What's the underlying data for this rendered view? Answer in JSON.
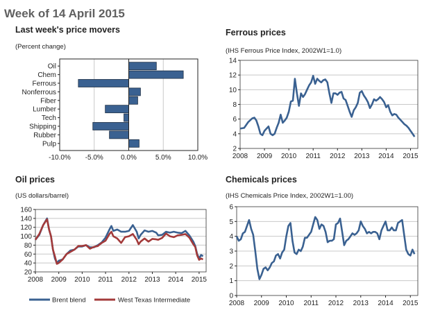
{
  "page_title": "Week of 14 April 2015",
  "colors": {
    "bar": "#3a6191",
    "brent": "#3a6191",
    "wti": "#a33a3a",
    "grid": "#c8c8c8"
  },
  "chart_data": [
    {
      "type": "bar",
      "orientation": "horizontal",
      "title": "Last week's price movers",
      "subtitle": "(Percent change)",
      "categories": [
        "Oil",
        "Chem",
        "Ferrous",
        "Nonferrous",
        "Fiber",
        "Lumber",
        "Tech",
        "Shipping",
        "Rubber",
        "Pulp"
      ],
      "values": [
        4.0,
        7.9,
        -7.3,
        1.7,
        1.3,
        -3.4,
        -0.7,
        -5.2,
        -2.8,
        1.5
      ],
      "xlim": [
        -10,
        10
      ],
      "xticks": [
        "-10.0%",
        "-5.0%",
        "0.0%",
        "5.0%",
        "10.0%"
      ],
      "grid": true
    },
    {
      "type": "line",
      "title": "Ferrous prices",
      "subtitle": "(IHS Ferrous Price Index, 2002W1=1.0)",
      "ylim": [
        2,
        14
      ],
      "yticks": [
        "2",
        "4",
        "6",
        "8",
        "10",
        "12",
        "14"
      ],
      "xticks": [
        "2008",
        "2009",
        "2010",
        "2011",
        "2012",
        "2013",
        "2014",
        "2015"
      ],
      "grid": true,
      "x": [
        "2008-01",
        "2008-03",
        "2008-05",
        "2008-07",
        "2008-08",
        "2008-09",
        "2008-10",
        "2008-11",
        "2008-12",
        "2009-01",
        "2009-02",
        "2009-03",
        "2009-04",
        "2009-05",
        "2009-06",
        "2009-07",
        "2009-08",
        "2009-09",
        "2009-10",
        "2009-11",
        "2009-12",
        "2010-01",
        "2010-02",
        "2010-03",
        "2010-04",
        "2010-05",
        "2010-06",
        "2010-07",
        "2010-08",
        "2010-09",
        "2010-10",
        "2010-11",
        "2010-12",
        "2011-01",
        "2011-02",
        "2011-03",
        "2011-04",
        "2011-05",
        "2011-06",
        "2011-07",
        "2011-08",
        "2011-09",
        "2011-10",
        "2011-11",
        "2011-12",
        "2012-01",
        "2012-02",
        "2012-03",
        "2012-04",
        "2012-05",
        "2012-06",
        "2012-07",
        "2012-08",
        "2012-09",
        "2012-10",
        "2012-11",
        "2012-12",
        "2013-01",
        "2013-02",
        "2013-03",
        "2013-04",
        "2013-05",
        "2013-06",
        "2013-07",
        "2013-08",
        "2013-09",
        "2013-10",
        "2013-11",
        "2013-12",
        "2014-01",
        "2014-02",
        "2014-03",
        "2014-04",
        "2014-05",
        "2014-06",
        "2014-07",
        "2014-08",
        "2014-09",
        "2014-10",
        "2014-11",
        "2014-12",
        "2015-01",
        "2015-02",
        "2015-03"
      ],
      "series": [
        {
          "values": [
            4.7,
            4.8,
            5.6,
            6.1,
            6.2,
            5.8,
            5.0,
            4.0,
            3.8,
            4.4,
            4.7,
            5.0,
            4.0,
            3.8,
            4.0,
            4.8,
            5.5,
            6.6,
            5.5,
            5.8,
            6.2,
            7.0,
            8.4,
            8.5,
            11.5,
            9.5,
            7.8,
            9.5,
            9.0,
            9.4,
            10.0,
            10.6,
            11.0,
            11.9,
            10.8,
            11.5,
            11.2,
            11.0,
            11.3,
            11.4,
            11.0,
            9.5,
            8.2,
            9.5,
            9.5,
            9.3,
            9.6,
            9.7,
            8.8,
            8.6,
            7.8,
            7.0,
            6.3,
            7.2,
            7.6,
            8.2,
            9.6,
            9.8,
            9.2,
            8.8,
            8.3,
            7.5,
            8.0,
            8.7,
            8.5,
            8.7,
            9.0,
            8.7,
            8.3,
            7.6,
            7.9,
            7.0,
            6.5,
            6.7,
            6.6,
            6.2,
            5.9,
            5.6,
            5.3,
            5.1,
            4.8,
            4.4,
            4.0,
            3.6
          ]
        }
      ]
    },
    {
      "type": "line",
      "title": "Oil prices",
      "subtitle": "(US dollars/barrel)",
      "ylim": [
        20,
        160
      ],
      "yticks": [
        "20",
        "40",
        "60",
        "80",
        "100",
        "120",
        "140",
        "160"
      ],
      "xticks": [
        "2008",
        "2009",
        "2010",
        "2011",
        "2012",
        "2013",
        "2014",
        "2015"
      ],
      "grid": true,
      "legend": "bottom",
      "x": [
        "2008-01",
        "2008-03",
        "2008-05",
        "2008-07",
        "2008-08",
        "2008-09",
        "2008-10",
        "2008-11",
        "2008-12",
        "2009-01",
        "2009-03",
        "2009-05",
        "2009-07",
        "2009-09",
        "2009-11",
        "2010-01",
        "2010-03",
        "2010-05",
        "2010-07",
        "2010-09",
        "2010-11",
        "2011-01",
        "2011-03",
        "2011-04",
        "2011-05",
        "2011-07",
        "2011-09",
        "2011-11",
        "2012-01",
        "2012-03",
        "2012-05",
        "2012-06",
        "2012-07",
        "2012-09",
        "2012-11",
        "2013-01",
        "2013-03",
        "2013-04",
        "2013-06",
        "2013-08",
        "2013-10",
        "2013-12",
        "2014-02",
        "2014-04",
        "2014-06",
        "2014-08",
        "2014-10",
        "2014-11",
        "2014-12",
        "2015-01",
        "2015-02",
        "2015-03"
      ],
      "series": [
        {
          "name": "Brent blend",
          "values": [
            92,
            103,
            125,
            140,
            115,
            100,
            70,
            50,
            40,
            45,
            48,
            60,
            68,
            70,
            77,
            77,
            80,
            75,
            75,
            80,
            86,
            97,
            115,
            123,
            112,
            115,
            110,
            110,
            112,
            125,
            110,
            95,
            103,
            113,
            110,
            112,
            108,
            102,
            103,
            110,
            108,
            110,
            108,
            107,
            112,
            102,
            88,
            78,
            60,
            50,
            58,
            55
          ]
        },
        {
          "name": "West Texas Intermediate",
          "values": [
            92,
            105,
            125,
            138,
            115,
            100,
            70,
            55,
            38,
            40,
            48,
            60,
            65,
            70,
            78,
            78,
            80,
            72,
            76,
            78,
            85,
            90,
            105,
            110,
            100,
            95,
            85,
            98,
            100,
            105,
            92,
            82,
            88,
            95,
            88,
            94,
            93,
            92,
            96,
            106,
            100,
            98,
            102,
            103,
            105,
            97,
            82,
            76,
            57,
            47,
            50,
            48
          ]
        }
      ]
    },
    {
      "type": "line",
      "title": "Chemicals prices",
      "subtitle": "(IHS Chemicals Price Index, 2002W1=1.00)",
      "ylim": [
        0,
        6
      ],
      "yticks": [
        "0",
        "1",
        "2",
        "3",
        "4",
        "5",
        "6"
      ],
      "xticks": [
        "2008",
        "2009",
        "2010",
        "2011",
        "2012",
        "2013",
        "2014",
        "2015"
      ],
      "grid": true,
      "x": [
        "2008-01",
        "2008-02",
        "2008-03",
        "2008-04",
        "2008-05",
        "2008-06",
        "2008-07",
        "2008-08",
        "2008-09",
        "2008-10",
        "2008-11",
        "2008-12",
        "2009-01",
        "2009-02",
        "2009-03",
        "2009-04",
        "2009-05",
        "2009-06",
        "2009-07",
        "2009-08",
        "2009-09",
        "2009-10",
        "2009-11",
        "2009-12",
        "2010-01",
        "2010-02",
        "2010-03",
        "2010-04",
        "2010-05",
        "2010-06",
        "2010-07",
        "2010-08",
        "2010-09",
        "2010-10",
        "2010-11",
        "2010-12",
        "2011-01",
        "2011-02",
        "2011-03",
        "2011-04",
        "2011-05",
        "2011-06",
        "2011-07",
        "2011-08",
        "2011-09",
        "2011-10",
        "2011-11",
        "2011-12",
        "2012-01",
        "2012-02",
        "2012-03",
        "2012-04",
        "2012-05",
        "2012-06",
        "2012-07",
        "2012-08",
        "2012-09",
        "2012-10",
        "2012-11",
        "2012-12",
        "2013-01",
        "2013-02",
        "2013-03",
        "2013-04",
        "2013-05",
        "2013-06",
        "2013-07",
        "2013-08",
        "2013-09",
        "2013-10",
        "2013-11",
        "2013-12",
        "2014-01",
        "2014-02",
        "2014-03",
        "2014-04",
        "2014-05",
        "2014-06",
        "2014-07",
        "2014-08",
        "2014-09",
        "2014-10",
        "2014-11",
        "2014-12",
        "2015-01",
        "2015-02",
        "2015-03"
      ],
      "series": [
        {
          "values": [
            4.0,
            3.7,
            3.8,
            4.2,
            4.3,
            4.7,
            5.1,
            4.5,
            4.1,
            3.0,
            1.8,
            1.1,
            1.4,
            1.8,
            1.9,
            1.7,
            1.9,
            2.2,
            2.3,
            2.7,
            2.8,
            2.5,
            2.9,
            3.1,
            4.0,
            4.7,
            4.9,
            3.7,
            2.9,
            2.8,
            3.1,
            3.0,
            3.3,
            3.9,
            3.9,
            4.1,
            4.3,
            4.8,
            5.3,
            5.1,
            4.5,
            4.8,
            4.7,
            4.3,
            3.6,
            3.7,
            3.7,
            3.8,
            4.8,
            4.9,
            5.2,
            4.3,
            3.4,
            3.7,
            3.8,
            4.0,
            4.2,
            4.1,
            4.2,
            4.4,
            5.0,
            4.7,
            4.5,
            4.2,
            4.3,
            4.2,
            4.3,
            4.3,
            4.2,
            3.8,
            4.4,
            4.7,
            5.0,
            4.4,
            4.4,
            4.6,
            4.4,
            4.4,
            4.9,
            5.0,
            5.1,
            4.1,
            3.1,
            2.8,
            2.7,
            3.1,
            2.8
          ]
        }
      ]
    }
  ]
}
